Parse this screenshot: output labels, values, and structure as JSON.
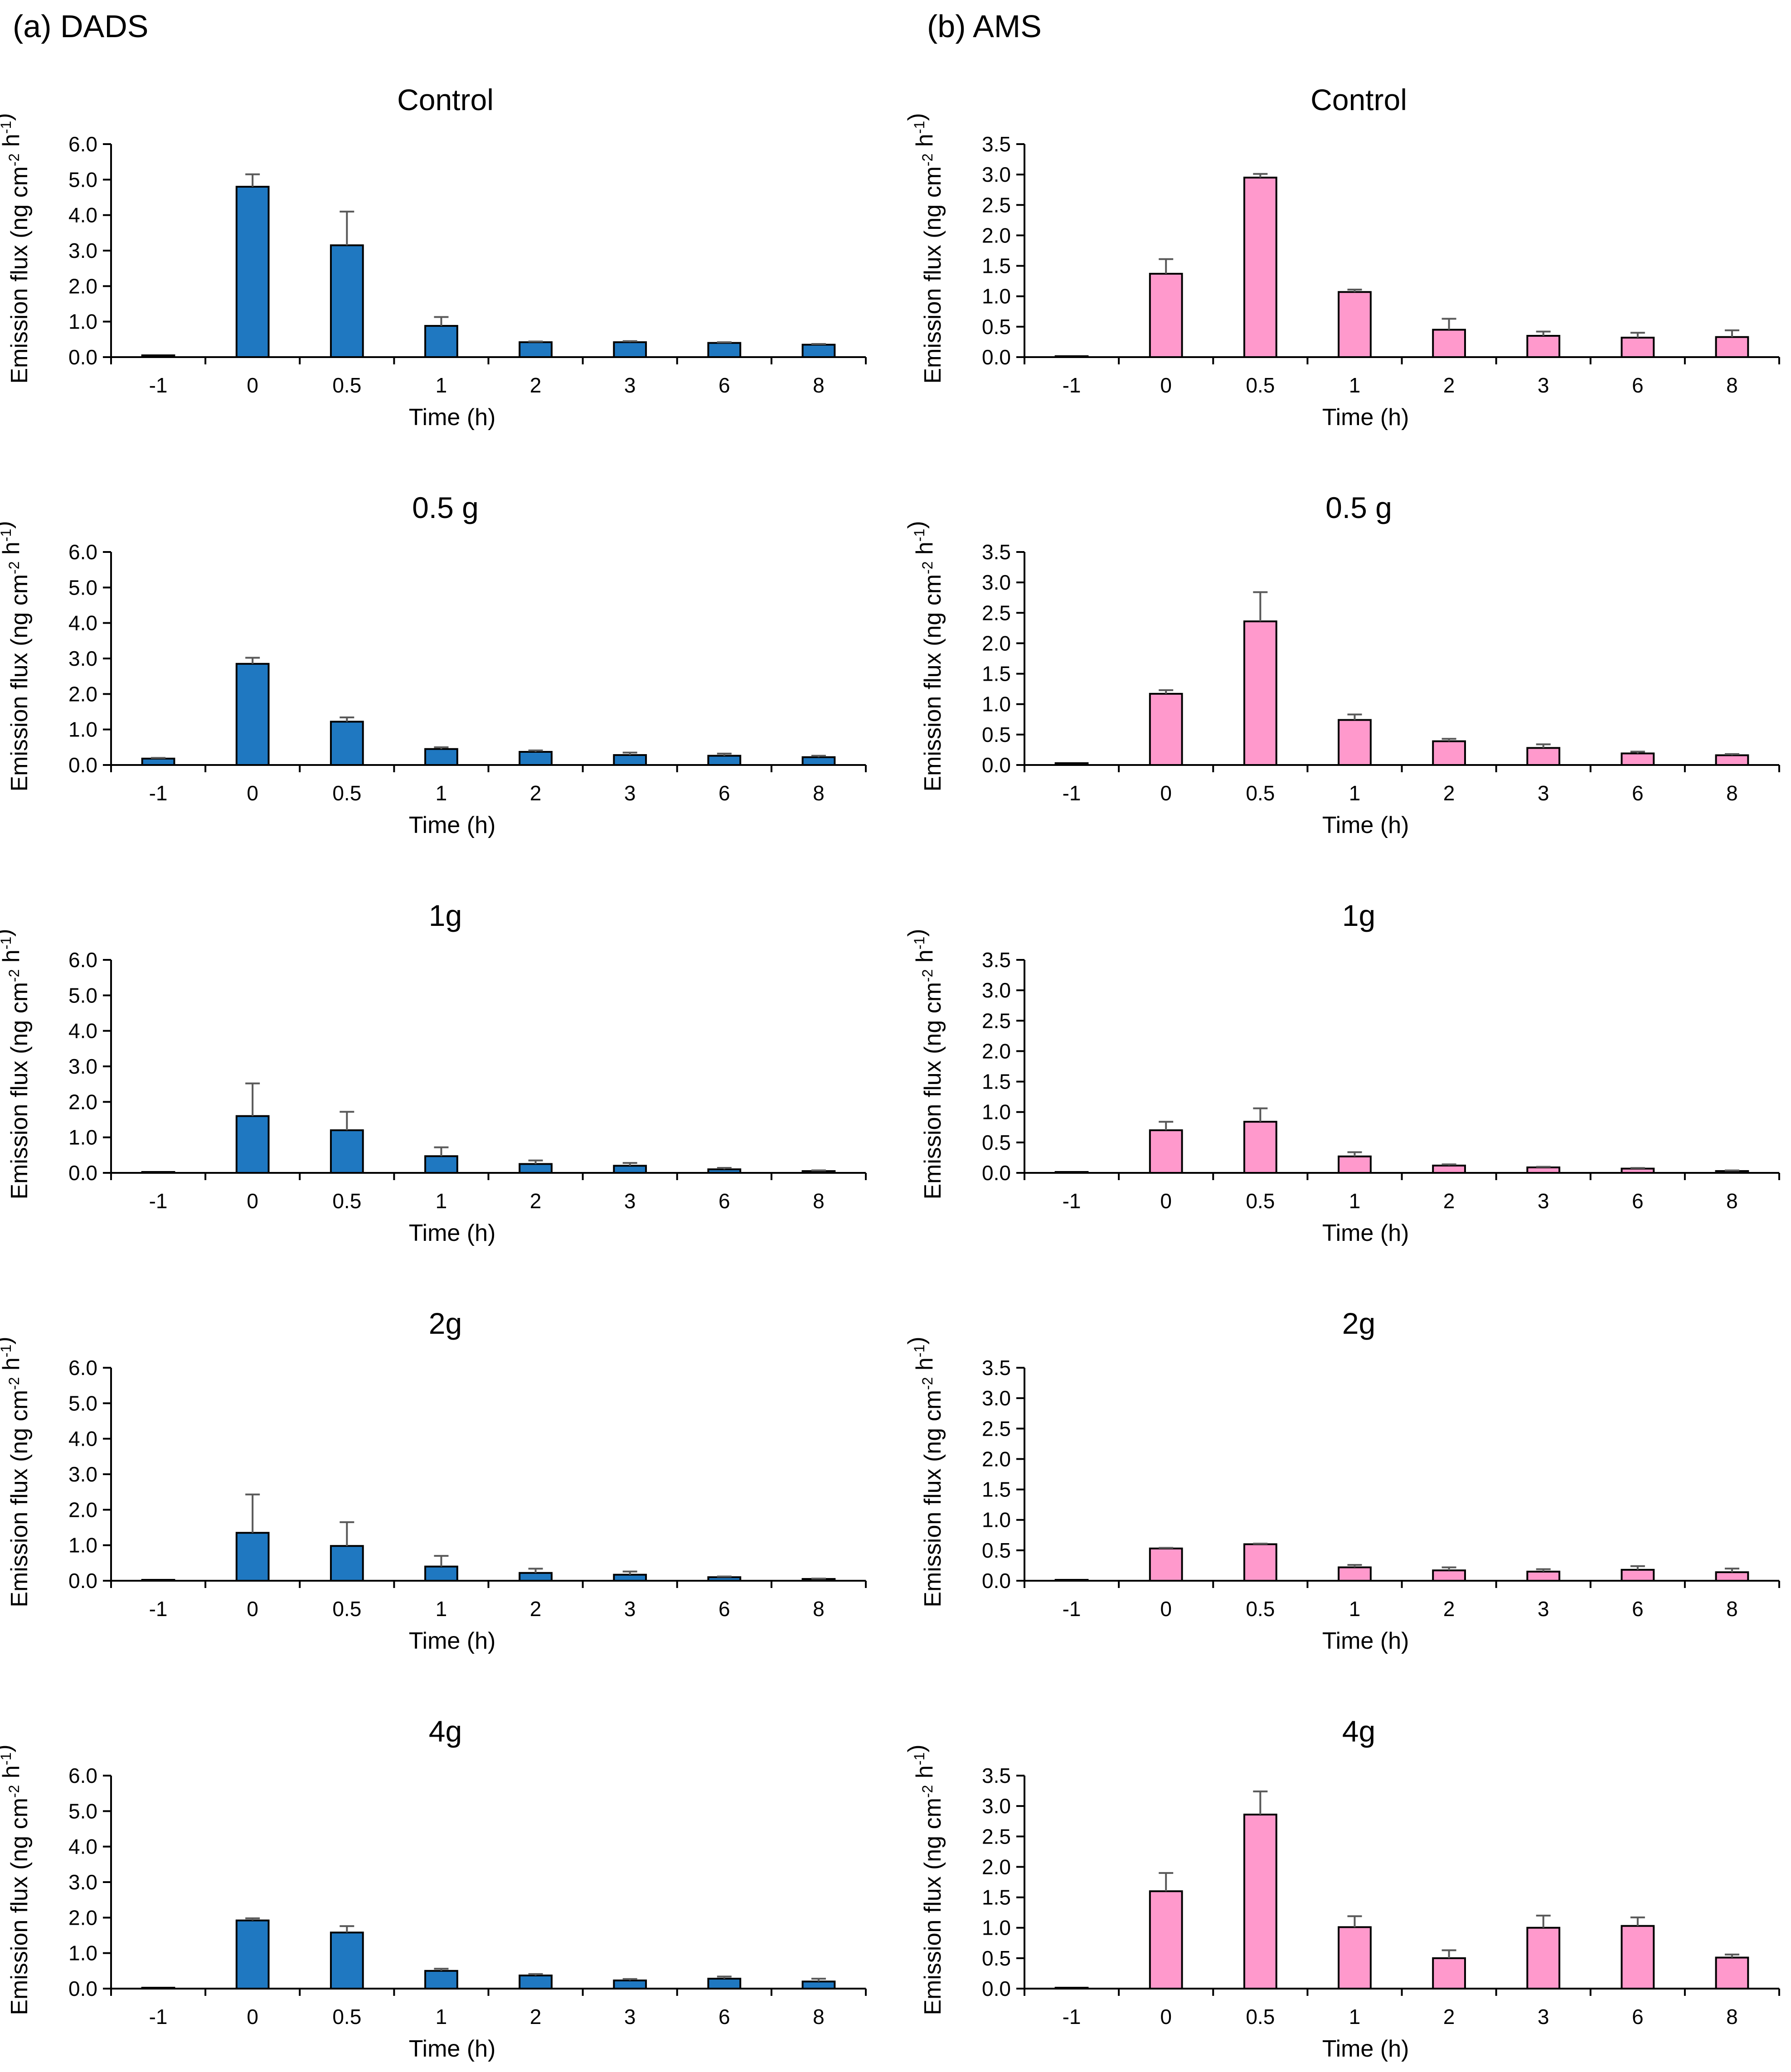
{
  "panels": [
    {
      "label": "(a) DADS",
      "color": "#1f78c1"
    },
    {
      "label": "(b) AMS",
      "color": "#ff99cc"
    }
  ],
  "colors": {
    "dads_bar": "#1f78c1",
    "ams_bar": "#ff99cc",
    "bar_outline": "#000000",
    "error_bar": "#595959",
    "axis": "#000000"
  },
  "chart_data": [
    {
      "id": "dads-control",
      "panel": 0,
      "row": 0,
      "type": "bar",
      "title": "Control",
      "categories": [
        "-1",
        "0",
        "0.5",
        "1",
        "2",
        "3",
        "6",
        "8"
      ],
      "values": [
        0.05,
        4.8,
        3.15,
        0.88,
        0.42,
        0.42,
        0.4,
        0.35
      ],
      "errors": [
        0.0,
        0.35,
        0.95,
        0.25,
        0.02,
        0.03,
        0.02,
        0.02
      ],
      "xlabel": "Time (h)",
      "ylabel": "Emission flux (ng cm-2 h-1)",
      "ylim": [
        0,
        6.0
      ],
      "yticks": [
        "0.0",
        "1.0",
        "2.0",
        "3.0",
        "4.0",
        "5.0",
        "6.0"
      ],
      "ytick_values": [
        0,
        1,
        2,
        3,
        4,
        5,
        6
      ]
    },
    {
      "id": "dads-0.5g",
      "panel": 0,
      "row": 1,
      "type": "bar",
      "title": "0.5 g",
      "categories": [
        "-1",
        "0",
        "0.5",
        "1",
        "2",
        "3",
        "6",
        "8"
      ],
      "values": [
        0.18,
        2.85,
        1.22,
        0.45,
        0.37,
        0.28,
        0.26,
        0.22
      ],
      "errors": [
        0.02,
        0.17,
        0.12,
        0.05,
        0.04,
        0.07,
        0.06,
        0.04
      ],
      "xlabel": "Time (h)",
      "ylabel": "Emission flux (ng cm-2 h-1)",
      "ylim": [
        0,
        6.0
      ],
      "yticks": [
        "0.0",
        "1.0",
        "2.0",
        "3.0",
        "4.0",
        "5.0",
        "6.0"
      ],
      "ytick_values": [
        0,
        1,
        2,
        3,
        4,
        5,
        6
      ]
    },
    {
      "id": "dads-1g",
      "panel": 0,
      "row": 2,
      "type": "bar",
      "title": "1g",
      "categories": [
        "-1",
        "0",
        "0.5",
        "1",
        "2",
        "3",
        "6",
        "8"
      ],
      "values": [
        0.02,
        1.6,
        1.2,
        0.47,
        0.25,
        0.2,
        0.1,
        0.05
      ],
      "errors": [
        0.0,
        0.92,
        0.52,
        0.25,
        0.1,
        0.08,
        0.04,
        0.02
      ],
      "xlabel": "Time (h)",
      "ylabel": "Emission flux (ng cm-2 h-1)",
      "ylim": [
        0,
        6.0
      ],
      "yticks": [
        "0.0",
        "1.0",
        "2.0",
        "3.0",
        "4.0",
        "5.0",
        "6.0"
      ],
      "ytick_values": [
        0,
        1,
        2,
        3,
        4,
        5,
        6
      ]
    },
    {
      "id": "dads-2g",
      "panel": 0,
      "row": 3,
      "type": "bar",
      "title": "2g",
      "categories": [
        "-1",
        "0",
        "0.5",
        "1",
        "2",
        "3",
        "6",
        "8"
      ],
      "values": [
        0.02,
        1.35,
        0.98,
        0.4,
        0.22,
        0.17,
        0.1,
        0.05
      ],
      "errors": [
        0.0,
        1.08,
        0.67,
        0.3,
        0.12,
        0.09,
        0.02,
        0.01
      ],
      "xlabel": "Time (h)",
      "ylabel": "Emission flux (ng cm-2 h-1)",
      "ylim": [
        0,
        6.0
      ],
      "yticks": [
        "0.0",
        "1.0",
        "2.0",
        "3.0",
        "4.0",
        "5.0",
        "6.0"
      ],
      "ytick_values": [
        0,
        1,
        2,
        3,
        4,
        5,
        6
      ]
    },
    {
      "id": "dads-4g",
      "panel": 0,
      "row": 4,
      "type": "bar",
      "title": "4g",
      "categories": [
        "-1",
        "0",
        "0.5",
        "1",
        "2",
        "3",
        "6",
        "8"
      ],
      "values": [
        0.02,
        1.92,
        1.58,
        0.5,
        0.37,
        0.23,
        0.28,
        0.2
      ],
      "errors": [
        0.0,
        0.06,
        0.18,
        0.06,
        0.04,
        0.04,
        0.06,
        0.08
      ],
      "xlabel": "Time (h)",
      "ylabel": "Emission flux (ng cm-2 h-1)",
      "ylim": [
        0,
        6.0
      ],
      "yticks": [
        "0.0",
        "1.0",
        "2.0",
        "3.0",
        "4.0",
        "5.0",
        "6.0"
      ],
      "ytick_values": [
        0,
        1,
        2,
        3,
        4,
        5,
        6
      ]
    },
    {
      "id": "ams-control",
      "panel": 1,
      "row": 0,
      "type": "bar",
      "title": "Control",
      "categories": [
        "-1",
        "0",
        "0.5",
        "1",
        "2",
        "3",
        "6",
        "8"
      ],
      "values": [
        0.01,
        1.37,
        2.95,
        1.07,
        0.45,
        0.35,
        0.32,
        0.33
      ],
      "errors": [
        0.0,
        0.24,
        0.06,
        0.04,
        0.18,
        0.07,
        0.08,
        0.11
      ],
      "xlabel": "Time (h)",
      "ylabel": "Emission flux (ng cm-2 h-1)",
      "ylim": [
        0,
        3.5
      ],
      "yticks": [
        "0.0",
        "0.5",
        "1.0",
        "1.5",
        "2.0",
        "2.5",
        "3.0",
        "3.5"
      ],
      "ytick_values": [
        0,
        0.5,
        1,
        1.5,
        2,
        2.5,
        3,
        3.5
      ]
    },
    {
      "id": "ams-0.5g",
      "panel": 1,
      "row": 1,
      "type": "bar",
      "title": "0.5 g",
      "categories": [
        "-1",
        "0",
        "0.5",
        "1",
        "2",
        "3",
        "6",
        "8"
      ],
      "values": [
        0.03,
        1.17,
        2.36,
        0.74,
        0.39,
        0.28,
        0.19,
        0.16
      ],
      "errors": [
        0.0,
        0.06,
        0.48,
        0.09,
        0.04,
        0.06,
        0.03,
        0.02
      ],
      "xlabel": "Time (h)",
      "ylabel": "Emission flux (ng cm-2 h-1)",
      "ylim": [
        0,
        3.5
      ],
      "yticks": [
        "0.0",
        "0.5",
        "1.0",
        "1.5",
        "2.0",
        "2.5",
        "3.0",
        "3.5"
      ],
      "ytick_values": [
        0,
        0.5,
        1,
        1.5,
        2,
        2.5,
        3,
        3.5
      ]
    },
    {
      "id": "ams-1g",
      "panel": 1,
      "row": 2,
      "type": "bar",
      "title": "1g",
      "categories": [
        "-1",
        "0",
        "0.5",
        "1",
        "2",
        "3",
        "6",
        "8"
      ],
      "values": [
        0.01,
        0.7,
        0.84,
        0.27,
        0.12,
        0.09,
        0.07,
        0.03
      ],
      "errors": [
        0.0,
        0.14,
        0.22,
        0.07,
        0.02,
        0.01,
        0.01,
        0.01
      ],
      "xlabel": "Time (h)",
      "ylabel": "Emission flux (ng cm-2 h-1)",
      "ylim": [
        0,
        3.5
      ],
      "yticks": [
        "0.0",
        "0.5",
        "1.0",
        "1.5",
        "2.0",
        "2.5",
        "3.0",
        "3.5"
      ],
      "ytick_values": [
        0,
        0.5,
        1,
        1.5,
        2,
        2.5,
        3,
        3.5
      ]
    },
    {
      "id": "ams-2g",
      "panel": 1,
      "row": 3,
      "type": "bar",
      "title": "2g",
      "categories": [
        "-1",
        "0",
        "0.5",
        "1",
        "2",
        "3",
        "6",
        "8"
      ],
      "values": [
        0.01,
        0.53,
        0.6,
        0.22,
        0.17,
        0.15,
        0.18,
        0.14
      ],
      "errors": [
        0.0,
        0.01,
        0.01,
        0.04,
        0.05,
        0.04,
        0.06,
        0.06
      ],
      "xlabel": "Time (h)",
      "ylabel": "Emission flux (ng cm-2 h-1)",
      "ylim": [
        0,
        3.5
      ],
      "yticks": [
        "0.0",
        "0.5",
        "1.0",
        "1.5",
        "2.0",
        "2.5",
        "3.0",
        "3.5"
      ],
      "ytick_values": [
        0,
        0.5,
        1,
        1.5,
        2,
        2.5,
        3,
        3.5
      ]
    },
    {
      "id": "ams-4g",
      "panel": 1,
      "row": 4,
      "type": "bar",
      "title": "4g",
      "categories": [
        "-1",
        "0",
        "0.5",
        "1",
        "2",
        "3",
        "6",
        "8"
      ],
      "values": [
        0.01,
        1.6,
        2.86,
        1.01,
        0.5,
        1.0,
        1.03,
        0.51
      ],
      "errors": [
        0.0,
        0.3,
        0.38,
        0.18,
        0.13,
        0.2,
        0.14,
        0.05
      ],
      "xlabel": "Time (h)",
      "ylabel": "Emission flux (ng cm-2 h-1)",
      "ylim": [
        0,
        3.5
      ],
      "yticks": [
        "0.0",
        "0.5",
        "1.0",
        "1.5",
        "2.0",
        "2.5",
        "3.0",
        "3.5"
      ],
      "ytick_values": [
        0,
        0.5,
        1,
        1.5,
        2,
        2.5,
        3,
        3.5
      ]
    }
  ]
}
